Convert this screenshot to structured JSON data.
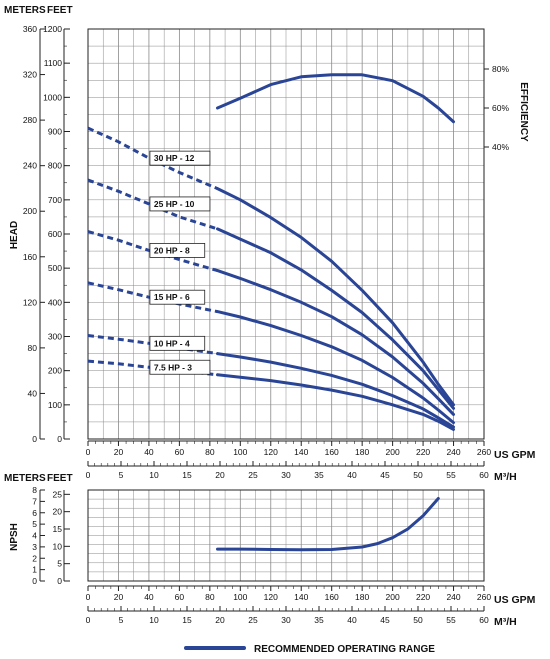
{
  "colors": {
    "curve": "#2a4596",
    "grid": "#8a8a8a",
    "axis": "#222222"
  },
  "head_panel": {
    "unit_header_meters": "METERS",
    "unit_header_feet": "FEET",
    "ylabel": "HEAD",
    "right_label": "EFFICIENCY",
    "meters_ticks": [
      "360",
      "320",
      "280",
      "240",
      "200",
      "160",
      "120",
      "80",
      "40",
      "0"
    ],
    "feet_ticks": [
      "1200",
      "1100",
      "1000",
      "900",
      "800",
      "700",
      "600",
      "500",
      "400",
      "300",
      "200",
      "100",
      "0"
    ],
    "efficiency_ticks": [
      "80%",
      "60%",
      "40%"
    ]
  },
  "x_axes": {
    "gpm_ticks": [
      "0",
      "20",
      "40",
      "60",
      "80",
      "100",
      "120",
      "140",
      "160",
      "180",
      "200",
      "220",
      "240",
      "260"
    ],
    "m3h_ticks": [
      "0",
      "5",
      "10",
      "15",
      "20",
      "25",
      "30",
      "35",
      "40",
      "45",
      "50",
      "55",
      "60"
    ],
    "gpm_label": "US GPM",
    "m3h_label": "M³/H"
  },
  "npsh_panel": {
    "unit_header_meters": "METERS",
    "unit_header_feet": "FEET",
    "ylabel": "NPSH",
    "meters_ticks": [
      "8",
      "7",
      "6",
      "5",
      "4",
      "3",
      "2",
      "1",
      "0"
    ],
    "feet_ticks": [
      "25",
      "20",
      "15",
      "10",
      "5",
      "0"
    ]
  },
  "legend": {
    "label": "RECOMMENDED OPERATING RANGE"
  },
  "chart_data": [
    {
      "type": "line",
      "title": "",
      "xlabel": "US GPM",
      "ylabel": "HEAD",
      "xlim": [
        0,
        260
      ],
      "ylim": [
        0,
        1200
      ],
      "y_unit": "FEET",
      "secondary_y": {
        "label": "EFFICIENCY",
        "unit": "%",
        "ticks": [
          40,
          60,
          80
        ]
      },
      "grid": true,
      "series": [
        {
          "name": "30 HP - 12",
          "dashed": {
            "x": [
              0,
              20,
              40,
              60,
              85
            ],
            "y": [
              910,
              870,
              822,
              780,
              733
            ]
          },
          "solid": {
            "x": [
              85,
              100,
              120,
              140,
              160,
              180,
              200,
              220,
              230,
              240
            ],
            "y": [
              733,
              700,
              648,
              590,
              520,
              435,
              340,
              225,
              160,
              100
            ]
          }
        },
        {
          "name": "25 HP - 10",
          "dashed": {
            "x": [
              0,
              20,
              40,
              60,
              85
            ],
            "y": [
              758,
              725,
              688,
              650,
              615
            ]
          },
          "solid": {
            "x": [
              85,
              100,
              120,
              140,
              160,
              180,
              200,
              220,
              230,
              240
            ],
            "y": [
              615,
              585,
              545,
              495,
              435,
              370,
              290,
              200,
              145,
              90
            ]
          }
        },
        {
          "name": "20 HP - 8",
          "dashed": {
            "x": [
              0,
              20,
              40,
              60,
              85
            ],
            "y": [
              607,
              582,
              552,
              525,
              493
            ]
          },
          "solid": {
            "x": [
              85,
              100,
              120,
              140,
              160,
              180,
              200,
              220,
              230,
              240
            ],
            "y": [
              493,
              470,
              437,
              400,
              358,
              305,
              240,
              163,
              118,
              72
            ]
          }
        },
        {
          "name": "15 HP - 6",
          "dashed": {
            "x": [
              0,
              20,
              40,
              60,
              85
            ],
            "y": [
              457,
              437,
              415,
              395,
              373
            ]
          },
          "solid": {
            "x": [
              85,
              100,
              120,
              140,
              160,
              180,
              200,
              220,
              230,
              240
            ],
            "y": [
              373,
              357,
              332,
              303,
              270,
              230,
              180,
              120,
              85,
              48
            ]
          }
        },
        {
          "name": "10 HP - 4",
          "dashed": {
            "x": [
              0,
              20,
              40,
              60,
              85
            ],
            "y": [
              303,
              292,
              280,
              266,
              250
            ]
          },
          "solid": {
            "x": [
              85,
              100,
              120,
              140,
              160,
              180,
              200,
              220,
              230,
              240
            ],
            "y": [
              250,
              240,
              225,
              207,
              186,
              160,
              127,
              88,
              62,
              35
            ]
          }
        },
        {
          "name": "7.5 HP - 3",
          "dashed": {
            "x": [
              0,
              20,
              40,
              60,
              85
            ],
            "y": [
              228,
              220,
              210,
              200,
              188
            ]
          },
          "solid": {
            "x": [
              85,
              100,
              120,
              140,
              160,
              180,
              200,
              220,
              230,
              240
            ],
            "y": [
              188,
              181,
              171,
              158,
              143,
              125,
              100,
              72,
              52,
              28
            ]
          }
        },
        {
          "name": "Efficiency",
          "solid": {
            "x": [
              85,
              100,
              120,
              140,
              160,
              180,
              200,
              220,
              230,
              240
            ],
            "y": [
              60,
              65,
              72,
              76,
              77,
              77,
              74,
              66,
              60,
              53
            ]
          }
        }
      ]
    },
    {
      "type": "line",
      "title": "",
      "xlabel": "US GPM",
      "ylabel": "NPSH",
      "xlim": [
        0,
        260
      ],
      "ylim": [
        0,
        26.25
      ],
      "y_unit": "FEET",
      "grid": true,
      "series": [
        {
          "name": "NPSH required",
          "solid": {
            "x": [
              85,
              100,
              120,
              140,
              160,
              180,
              190,
              200,
              210,
              220,
              230
            ],
            "y": [
              9.2,
              9.2,
              9.1,
              9.0,
              9.1,
              9.8,
              10.8,
              12.5,
              15.0,
              18.8,
              23.8
            ]
          }
        }
      ]
    }
  ]
}
